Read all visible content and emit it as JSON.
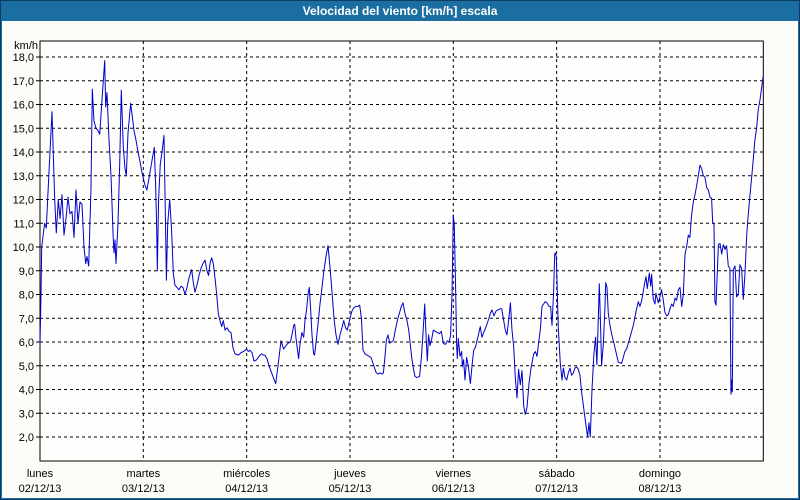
{
  "window": {
    "title": "Velocidad del viento [km/h] escala"
  },
  "colors": {
    "titlebar": "#1b6ea1",
    "window_border": "#0f3c5f",
    "content_bg": "#fcfdf8",
    "plot_bg": "#fefefc",
    "grid": "#000000",
    "axis": "#000000",
    "label_text": "#000000",
    "series_line": "#0000cc"
  },
  "chart_data": {
    "type": "line",
    "title": "Velocidad del viento [km/h] escala",
    "ylabel": "km/h",
    "unit_label": "km/h",
    "ylim": [
      2,
      18
    ],
    "ytick_step": 1.0,
    "ytick_labels": [
      "18,0",
      "17,0",
      "16,0",
      "15,0",
      "14,0",
      "13,0",
      "12,0",
      "11,0",
      "10,0",
      "9,0",
      "8,0",
      "7,0",
      "6,0",
      "5,0",
      "4,0",
      "3,0",
      "2,0"
    ],
    "grid": "dashed",
    "legend": "none",
    "x_days": [
      {
        "name": "lunes",
        "date": "02/12/13"
      },
      {
        "name": "martes",
        "date": "03/12/13"
      },
      {
        "name": "miércoles",
        "date": "04/12/13"
      },
      {
        "name": "jueves",
        "date": "05/12/13"
      },
      {
        "name": "viernes",
        "date": "06/12/13"
      },
      {
        "name": "sábado",
        "date": "07/12/13"
      },
      {
        "name": "domingo",
        "date": "08/12/13"
      }
    ],
    "x_unit": "days_from_2013-12-02",
    "points": [
      [
        0.0,
        5.9
      ],
      [
        0.01,
        8.0
      ],
      [
        0.016,
        10.0
      ],
      [
        0.045,
        11.0
      ],
      [
        0.061,
        10.8
      ],
      [
        0.077,
        12.3
      ],
      [
        0.097,
        14.0
      ],
      [
        0.116,
        15.7
      ],
      [
        0.142,
        12.0
      ],
      [
        0.158,
        10.6
      ],
      [
        0.177,
        12.0
      ],
      [
        0.194,
        11.2
      ],
      [
        0.213,
        12.2
      ],
      [
        0.232,
        10.5
      ],
      [
        0.252,
        11.2
      ],
      [
        0.271,
        12.1
      ],
      [
        0.29,
        11.4
      ],
      [
        0.31,
        11.5
      ],
      [
        0.329,
        10.4
      ],
      [
        0.348,
        12.4
      ],
      [
        0.368,
        11.0
      ],
      [
        0.387,
        11.9
      ],
      [
        0.406,
        11.8
      ],
      [
        0.426,
        10.0
      ],
      [
        0.442,
        9.3
      ],
      [
        0.455,
        9.6
      ],
      [
        0.471,
        9.2
      ],
      [
        0.494,
        12.5
      ],
      [
        0.506,
        16.65
      ],
      [
        0.523,
        15.3
      ],
      [
        0.542,
        15.0
      ],
      [
        0.561,
        14.9
      ],
      [
        0.578,
        14.75
      ],
      [
        0.6,
        16.2
      ],
      [
        0.626,
        17.85
      ],
      [
        0.636,
        15.9
      ],
      [
        0.648,
        16.5
      ],
      [
        0.668,
        14.5
      ],
      [
        0.687,
        13.0
      ],
      [
        0.707,
        10.5
      ],
      [
        0.716,
        9.75
      ],
      [
        0.726,
        10.3
      ],
      [
        0.736,
        9.3
      ],
      [
        0.755,
        11.0
      ],
      [
        0.771,
        13.5
      ],
      [
        0.787,
        16.6
      ],
      [
        0.806,
        14.2
      ],
      [
        0.823,
        13.3
      ],
      [
        0.835,
        13.0
      ],
      [
        0.852,
        14.8
      ],
      [
        0.878,
        16.05
      ],
      [
        0.893,
        15.5
      ],
      [
        0.91,
        14.9
      ],
      [
        0.929,
        14.5
      ],
      [
        0.948,
        14.0
      ],
      [
        0.968,
        13.6
      ],
      [
        0.984,
        13.2
      ],
      [
        1.0,
        12.9
      ],
      [
        1.016,
        12.6
      ],
      [
        1.035,
        12.4
      ],
      [
        1.055,
        12.9
      ],
      [
        1.074,
        13.4
      ],
      [
        1.106,
        14.2
      ],
      [
        1.12,
        12.5
      ],
      [
        1.129,
        10.8
      ],
      [
        1.135,
        9.0
      ],
      [
        1.148,
        12.0
      ],
      [
        1.164,
        13.5
      ],
      [
        1.181,
        14.0
      ],
      [
        1.2,
        14.7
      ],
      [
        1.213,
        11.5
      ],
      [
        1.223,
        8.6
      ],
      [
        1.236,
        11.0
      ],
      [
        1.255,
        12.0
      ],
      [
        1.274,
        10.7
      ],
      [
        1.29,
        8.9
      ],
      [
        1.306,
        8.4
      ],
      [
        1.326,
        8.3
      ],
      [
        1.345,
        8.2
      ],
      [
        1.365,
        8.35
      ],
      [
        1.384,
        8.3
      ],
      [
        1.403,
        8.0
      ],
      [
        1.423,
        8.3
      ],
      [
        1.442,
        8.7
      ],
      [
        1.468,
        9.05
      ],
      [
        1.484,
        8.5
      ],
      [
        1.5,
        8.1
      ],
      [
        1.519,
        8.4
      ],
      [
        1.539,
        8.8
      ],
      [
        1.558,
        9.1
      ],
      [
        1.577,
        9.3
      ],
      [
        1.597,
        9.45
      ],
      [
        1.616,
        9.0
      ],
      [
        1.632,
        8.8
      ],
      [
        1.645,
        9.3
      ],
      [
        1.661,
        9.55
      ],
      [
        1.677,
        9.3
      ],
      [
        1.694,
        8.7
      ],
      [
        1.71,
        8.0
      ],
      [
        1.726,
        7.2
      ],
      [
        1.742,
        6.9
      ],
      [
        1.758,
        6.65
      ],
      [
        1.774,
        6.9
      ],
      [
        1.79,
        6.5
      ],
      [
        1.81,
        6.6
      ],
      [
        1.829,
        6.45
      ],
      [
        1.848,
        6.4
      ],
      [
        1.868,
        5.75
      ],
      [
        1.887,
        5.5
      ],
      [
        1.919,
        5.45
      ],
      [
        1.945,
        5.55
      ],
      [
        1.968,
        5.6
      ],
      [
        1.984,
        5.65
      ],
      [
        2.0,
        5.7
      ],
      [
        2.016,
        5.6
      ],
      [
        2.032,
        5.65
      ],
      [
        2.052,
        5.55
      ],
      [
        2.071,
        5.2
      ],
      [
        2.097,
        5.25
      ],
      [
        2.113,
        5.35
      ],
      [
        2.129,
        5.45
      ],
      [
        2.145,
        5.5
      ],
      [
        2.161,
        5.45
      ],
      [
        2.177,
        5.45
      ],
      [
        2.197,
        5.3
      ],
      [
        2.216,
        5.0
      ],
      [
        2.242,
        4.7
      ],
      [
        2.258,
        4.5
      ],
      [
        2.281,
        4.25
      ],
      [
        2.303,
        5.0
      ],
      [
        2.332,
        6.05
      ],
      [
        2.358,
        5.7
      ],
      [
        2.381,
        5.85
      ],
      [
        2.4,
        5.95
      ],
      [
        2.423,
        6.0
      ],
      [
        2.439,
        6.3
      ],
      [
        2.455,
        6.7
      ],
      [
        2.465,
        6.75
      ],
      [
        2.477,
        6.2
      ],
      [
        2.494,
        5.6
      ],
      [
        2.503,
        5.3
      ],
      [
        2.516,
        5.9
      ],
      [
        2.535,
        6.4
      ],
      [
        2.552,
        6.2
      ],
      [
        2.565,
        6.9
      ],
      [
        2.581,
        7.4
      ],
      [
        2.594,
        8.0
      ],
      [
        2.606,
        8.3
      ],
      [
        2.619,
        7.4
      ],
      [
        2.632,
        6.3
      ],
      [
        2.648,
        5.5
      ],
      [
        2.658,
        5.45
      ],
      [
        2.677,
        6.2
      ],
      [
        2.694,
        6.9
      ],
      [
        2.71,
        7.6
      ],
      [
        2.729,
        8.3
      ],
      [
        2.748,
        9.0
      ],
      [
        2.768,
        9.6
      ],
      [
        2.787,
        10.05
      ],
      [
        2.806,
        9.2
      ],
      [
        2.826,
        8.1
      ],
      [
        2.845,
        7.0
      ],
      [
        2.865,
        6.3
      ],
      [
        2.884,
        5.9
      ],
      [
        2.903,
        6.3
      ],
      [
        2.923,
        6.6
      ],
      [
        2.939,
        6.9
      ],
      [
        2.958,
        6.6
      ],
      [
        2.974,
        6.5
      ],
      [
        2.987,
        6.75
      ],
      [
        3.0,
        7.0
      ],
      [
        3.019,
        7.3
      ],
      [
        3.039,
        7.45
      ],
      [
        3.058,
        7.5
      ],
      [
        3.077,
        7.5
      ],
      [
        3.094,
        7.55
      ],
      [
        3.11,
        7.0
      ],
      [
        3.126,
        5.65
      ],
      [
        3.145,
        5.5
      ],
      [
        3.165,
        5.45
      ],
      [
        3.184,
        5.4
      ],
      [
        3.203,
        5.35
      ],
      [
        3.223,
        5.1
      ],
      [
        3.242,
        4.85
      ],
      [
        3.255,
        4.7
      ],
      [
        3.271,
        4.65
      ],
      [
        3.29,
        4.7
      ],
      [
        3.31,
        4.65
      ],
      [
        3.323,
        4.7
      ],
      [
        3.339,
        5.4
      ],
      [
        3.352,
        6.1
      ],
      [
        3.368,
        6.3
      ],
      [
        3.384,
        5.95
      ],
      [
        3.4,
        6.0
      ],
      [
        3.419,
        6.05
      ],
      [
        3.439,
        6.5
      ],
      [
        3.458,
        6.9
      ],
      [
        3.477,
        7.2
      ],
      [
        3.497,
        7.5
      ],
      [
        3.513,
        7.65
      ],
      [
        3.532,
        7.2
      ],
      [
        3.552,
        6.9
      ],
      [
        3.568,
        6.5
      ],
      [
        3.584,
        5.9
      ],
      [
        3.597,
        5.35
      ],
      [
        3.613,
        4.9
      ],
      [
        3.629,
        4.55
      ],
      [
        3.648,
        4.5
      ],
      [
        3.674,
        4.55
      ],
      [
        3.69,
        5.3
      ],
      [
        3.706,
        6.3
      ],
      [
        3.723,
        7.6
      ],
      [
        3.735,
        6.4
      ],
      [
        3.748,
        5.2
      ],
      [
        3.761,
        6.3
      ],
      [
        3.774,
        5.85
      ],
      [
        3.79,
        6.1
      ],
      [
        3.806,
        6.5
      ],
      [
        3.826,
        6.45
      ],
      [
        3.845,
        6.4
      ],
      [
        3.865,
        6.35
      ],
      [
        3.884,
        6.45
      ],
      [
        3.903,
        5.95
      ],
      [
        3.923,
        5.9
      ],
      [
        3.942,
        6.05
      ],
      [
        3.961,
        6.0
      ],
      [
        3.974,
        6.3
      ],
      [
        3.987,
        8.0
      ],
      [
        4.0,
        11.35
      ],
      [
        4.01,
        10.9
      ],
      [
        4.016,
        9.5
      ],
      [
        4.023,
        8.1
      ],
      [
        4.032,
        5.9
      ],
      [
        4.039,
        5.3
      ],
      [
        4.048,
        6.15
      ],
      [
        4.065,
        5.4
      ],
      [
        4.081,
        5.6
      ],
      [
        4.087,
        4.95
      ],
      [
        4.1,
        5.25
      ],
      [
        4.113,
        4.4
      ],
      [
        4.129,
        5.35
      ],
      [
        4.145,
        5.0
      ],
      [
        4.165,
        4.25
      ],
      [
        4.181,
        5.0
      ],
      [
        4.197,
        5.65
      ],
      [
        4.216,
        5.8
      ],
      [
        4.232,
        6.1
      ],
      [
        4.248,
        6.4
      ],
      [
        4.261,
        6.65
      ],
      [
        4.277,
        6.2
      ],
      [
        4.294,
        6.4
      ],
      [
        4.313,
        6.6
      ],
      [
        4.329,
        6.8
      ],
      [
        4.345,
        7.0
      ],
      [
        4.358,
        7.2
      ],
      [
        4.374,
        7.35
      ],
      [
        4.394,
        7.1
      ],
      [
        4.413,
        7.3
      ],
      [
        4.432,
        7.35
      ],
      [
        4.452,
        7.4
      ],
      [
        4.468,
        7.4
      ],
      [
        4.484,
        7.0
      ],
      [
        4.503,
        6.5
      ],
      [
        4.519,
        6.3
      ],
      [
        4.535,
        6.9
      ],
      [
        4.552,
        7.65
      ],
      [
        4.568,
        6.5
      ],
      [
        4.584,
        5.8
      ],
      [
        4.6,
        4.5
      ],
      [
        4.616,
        3.65
      ],
      [
        4.632,
        4.85
      ],
      [
        4.648,
        4.2
      ],
      [
        4.665,
        4.8
      ],
      [
        4.681,
        3.3
      ],
      [
        4.697,
        2.95
      ],
      [
        4.713,
        3.25
      ],
      [
        4.732,
        4.25
      ],
      [
        4.752,
        4.9
      ],
      [
        4.778,
        5.5
      ],
      [
        4.794,
        5.6
      ],
      [
        4.81,
        5.4
      ],
      [
        4.826,
        6.0
      ],
      [
        4.842,
        6.5
      ],
      [
        4.858,
        7.5
      ],
      [
        4.874,
        7.6
      ],
      [
        4.89,
        7.7
      ],
      [
        4.906,
        7.65
      ],
      [
        4.926,
        7.5
      ],
      [
        4.942,
        7.5
      ],
      [
        4.955,
        6.7
      ],
      [
        4.971,
        8.1
      ],
      [
        4.981,
        9.7
      ],
      [
        4.987,
        9.75
      ],
      [
        4.997,
        9.6
      ],
      [
        5.006,
        8.1
      ],
      [
        5.016,
        6.6
      ],
      [
        5.035,
        5.1
      ],
      [
        5.052,
        4.4
      ],
      [
        5.065,
        4.9
      ],
      [
        5.081,
        4.5
      ],
      [
        5.097,
        4.4
      ],
      [
        5.113,
        4.7
      ],
      [
        5.129,
        4.9
      ],
      [
        5.145,
        4.6
      ],
      [
        5.161,
        4.7
      ],
      [
        5.177,
        4.9
      ],
      [
        5.194,
        4.95
      ],
      [
        5.21,
        4.85
      ],
      [
        5.226,
        4.6
      ],
      [
        5.242,
        3.9
      ],
      [
        5.258,
        3.35
      ],
      [
        5.274,
        2.8
      ],
      [
        5.3,
        2.0
      ],
      [
        5.313,
        2.6
      ],
      [
        5.326,
        2.0
      ],
      [
        5.342,
        4.0
      ],
      [
        5.361,
        5.5
      ],
      [
        5.377,
        6.2
      ],
      [
        5.39,
        5.05
      ],
      [
        5.403,
        7.0
      ],
      [
        5.413,
        8.45
      ],
      [
        5.426,
        6.5
      ],
      [
        5.435,
        5.0
      ],
      [
        5.452,
        5.9
      ],
      [
        5.468,
        7.5
      ],
      [
        5.475,
        8.5
      ],
      [
        5.487,
        8.3
      ],
      [
        5.5,
        7.2
      ],
      [
        5.516,
        6.7
      ],
      [
        5.532,
        6.35
      ],
      [
        5.565,
        5.75
      ],
      [
        5.597,
        5.15
      ],
      [
        5.629,
        5.1
      ],
      [
        5.661,
        5.6
      ],
      [
        5.677,
        5.7
      ],
      [
        5.71,
        6.2
      ],
      [
        5.742,
        6.7
      ],
      [
        5.774,
        7.4
      ],
      [
        5.79,
        7.7
      ],
      [
        5.806,
        7.5
      ],
      [
        5.823,
        7.75
      ],
      [
        5.855,
        8.55
      ],
      [
        5.865,
        8.75
      ],
      [
        5.877,
        8.25
      ],
      [
        5.897,
        8.9
      ],
      [
        5.91,
        8.35
      ],
      [
        5.919,
        8.85
      ],
      [
        5.935,
        7.8
      ],
      [
        5.952,
        7.6
      ],
      [
        5.961,
        8.05
      ],
      [
        5.984,
        7.65
      ],
      [
        6.0,
        7.9
      ],
      [
        6.016,
        8.2
      ],
      [
        6.032,
        7.75
      ],
      [
        6.048,
        7.25
      ],
      [
        6.065,
        7.1
      ],
      [
        6.081,
        7.15
      ],
      [
        6.097,
        7.4
      ],
      [
        6.113,
        7.6
      ],
      [
        6.129,
        7.5
      ],
      [
        6.145,
        7.85
      ],
      [
        6.161,
        7.75
      ],
      [
        6.177,
        8.2
      ],
      [
        6.194,
        8.3
      ],
      [
        6.21,
        7.5
      ],
      [
        6.226,
        8.0
      ],
      [
        6.242,
        9.7
      ],
      [
        6.258,
        10.0
      ],
      [
        6.274,
        10.5
      ],
      [
        6.29,
        10.4
      ],
      [
        6.306,
        11.35
      ],
      [
        6.323,
        11.9
      ],
      [
        6.339,
        12.2
      ],
      [
        6.355,
        12.6
      ],
      [
        6.371,
        13.0
      ],
      [
        6.387,
        13.45
      ],
      [
        6.403,
        13.3
      ],
      [
        6.419,
        13.0
      ],
      [
        6.435,
        12.95
      ],
      [
        6.452,
        12.5
      ],
      [
        6.468,
        12.4
      ],
      [
        6.484,
        12.1
      ],
      [
        6.5,
        12.05
      ],
      [
        6.51,
        11.0
      ],
      [
        6.523,
        10.95
      ],
      [
        6.532,
        7.7
      ],
      [
        6.542,
        7.55
      ],
      [
        6.565,
        10.1
      ],
      [
        6.581,
        10.15
      ],
      [
        6.597,
        9.7
      ],
      [
        6.613,
        10.1
      ],
      [
        6.629,
        9.9
      ],
      [
        6.645,
        10.05
      ],
      [
        6.661,
        9.2
      ],
      [
        6.677,
        9.1
      ],
      [
        6.687,
        3.8
      ],
      [
        6.694,
        4.4
      ],
      [
        6.7,
        3.9
      ],
      [
        6.71,
        9.05
      ],
      [
        6.726,
        9.2
      ],
      [
        6.742,
        7.9
      ],
      [
        6.758,
        8.0
      ],
      [
        6.774,
        9.25
      ],
      [
        6.79,
        9.1
      ],
      [
        6.806,
        7.8
      ],
      [
        6.823,
        8.9
      ],
      [
        6.839,
        10.5
      ],
      [
        6.855,
        11.4
      ],
      [
        6.871,
        12.2
      ],
      [
        6.887,
        12.9
      ],
      [
        6.903,
        13.7
      ],
      [
        6.919,
        14.5
      ],
      [
        6.935,
        15.0
      ],
      [
        6.952,
        15.8
      ],
      [
        6.968,
        16.2
      ],
      [
        6.984,
        16.7
      ],
      [
        6.997,
        17.15
      ]
    ]
  }
}
